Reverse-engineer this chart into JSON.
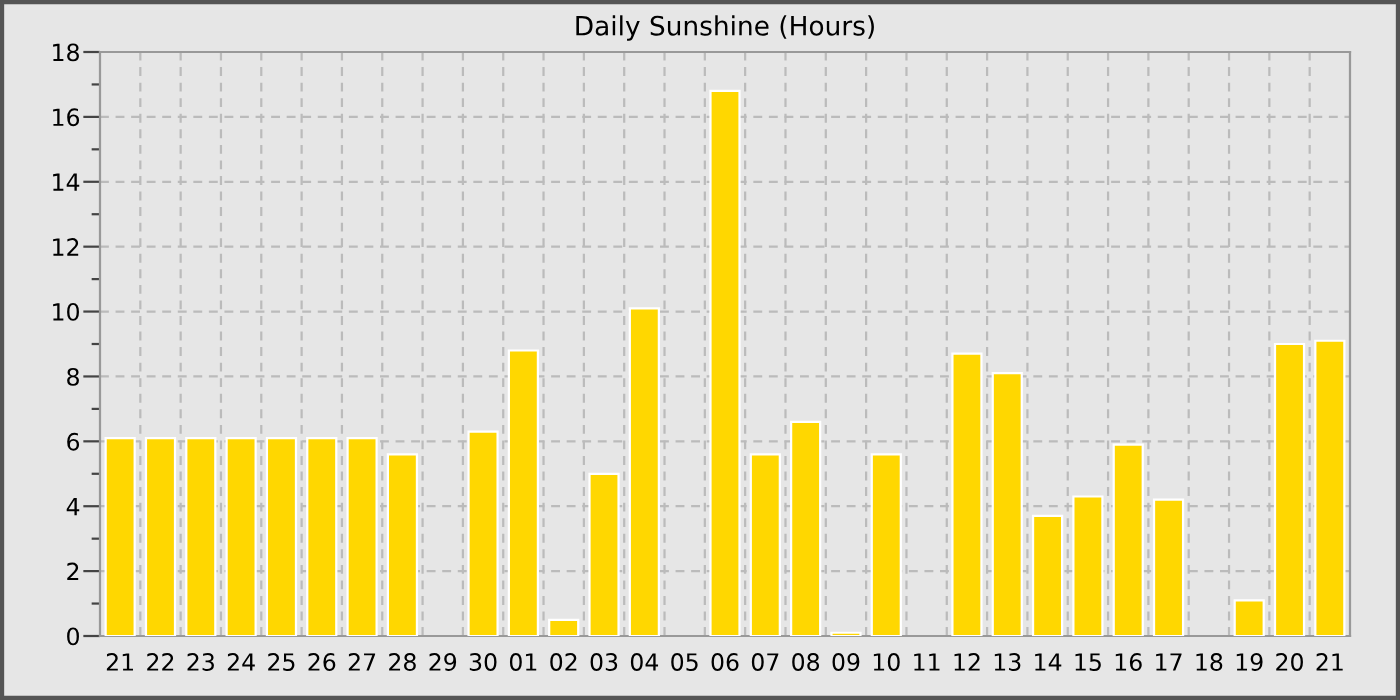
{
  "chart_data": {
    "type": "bar",
    "title": "Daily Sunshine (Hours)",
    "categories": [
      "21",
      "22",
      "23",
      "24",
      "25",
      "26",
      "27",
      "28",
      "29",
      "30",
      "01",
      "02",
      "03",
      "04",
      "05",
      "06",
      "07",
      "08",
      "09",
      "10",
      "11",
      "12",
      "13",
      "14",
      "15",
      "16",
      "17",
      "18",
      "19",
      "20",
      "21"
    ],
    "values": [
      6.1,
      6.1,
      6.1,
      6.1,
      6.1,
      6.1,
      6.1,
      5.6,
      0,
      6.3,
      8.8,
      0.5,
      5.0,
      10.1,
      0,
      16.8,
      5.6,
      6.6,
      0.1,
      5.6,
      0,
      8.7,
      8.1,
      3.7,
      4.3,
      5.9,
      4.2,
      0,
      1.1,
      9.0,
      9.1
    ],
    "color": "#ffd700",
    "ylim": [
      0,
      18
    ],
    "yticks": [
      0,
      {
        "value": 1,
        "label": null
      },
      2,
      {
        "value": 3,
        "label": null
      },
      4,
      {
        "value": 5,
        "label": null
      },
      6,
      {
        "value": 7,
        "label": null
      },
      8,
      {
        "value": 9,
        "label": null
      },
      10,
      {
        "value": 11,
        "label": null
      },
      12,
      {
        "value": 13,
        "label": null
      },
      14,
      {
        "value": 15,
        "label": null
      },
      16,
      {
        "value": 17,
        "label": null
      },
      18
    ],
    "grid": true
  }
}
